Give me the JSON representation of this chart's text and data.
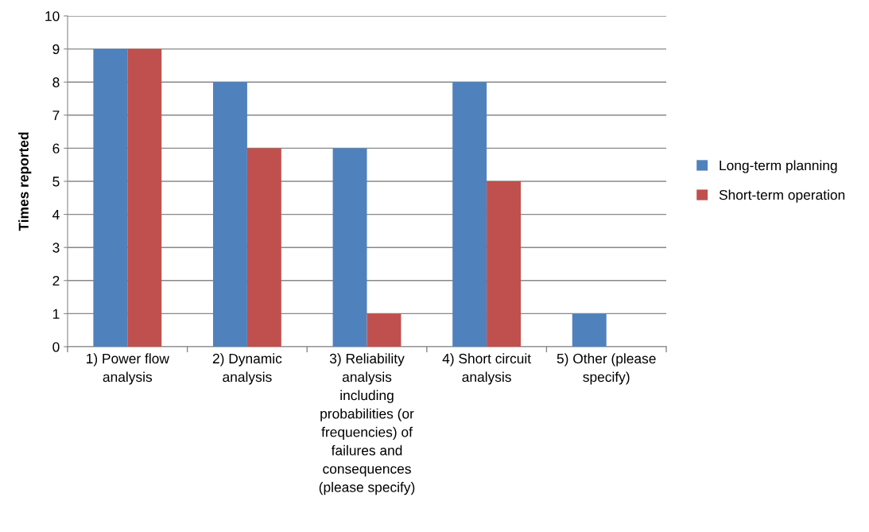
{
  "chart_data": {
    "type": "bar",
    "ylabel": "Times reported",
    "categories": [
      "1) Power flow\nanalysis",
      "2) Dynamic\nanalysis",
      "3) Reliability\nanalysis\nincluding\nprobabilities (or\nfrequencies) of\nfailures and\nconsequences\n(please specify)",
      "4) Short circuit\nanalysis",
      "5) Other (please\nspecify)"
    ],
    "series": [
      {
        "name": "Long-term planning",
        "color": "#4f81bd",
        "values": [
          9,
          8,
          6,
          8,
          1
        ]
      },
      {
        "name": "Short-term operation",
        "color": "#c0504d",
        "values": [
          9,
          6,
          1,
          5,
          0
        ]
      }
    ],
    "ylim": [
      0,
      10
    ],
    "yticks": [
      0,
      1,
      2,
      3,
      4,
      5,
      6,
      7,
      8,
      9,
      10
    ],
    "grid": "y",
    "legend": "right"
  }
}
